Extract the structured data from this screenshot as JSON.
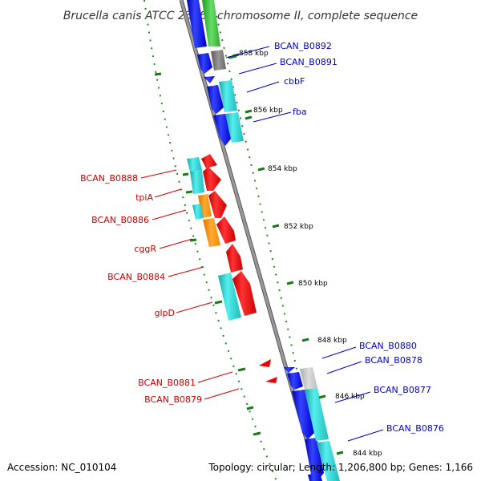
{
  "title": "Brucella canis ATCC 23365 chromosome II, complete sequence",
  "footer": {
    "accession": "Accession: NC_010104",
    "summary": "Topology: circular; Length: 1,206,800 bp; Genes: 1,166"
  },
  "ticks": [
    "858 kbp",
    "856 kbp",
    "854 kbp",
    "852 kbp",
    "850 kbp",
    "848 kbp",
    "846 kbp",
    "844 kbp"
  ],
  "forward_labels": [
    "BCAN_B0892",
    "BCAN_B0891",
    "cbbF",
    "fba",
    "BCAN_B0880",
    "BCAN_B0878",
    "BCAN_B0877",
    "BCAN_B0876"
  ],
  "reverse_labels": [
    "BCAN_B0888",
    "tpiA",
    "BCAN_B0886",
    "cggR",
    "BCAN_B0884",
    "glpD",
    "BCAN_B0881",
    "BCAN_B0879"
  ],
  "colors": {
    "backbone": "#888888",
    "forward_cds": "#0000ee",
    "reverse_cds": "#ee0000",
    "cog_cyan": "#22cccc",
    "cog_orange": "#ff8c00",
    "cog_green": "#33bb33",
    "cog_gray": "#777777",
    "gc_dots": "#228822"
  }
}
